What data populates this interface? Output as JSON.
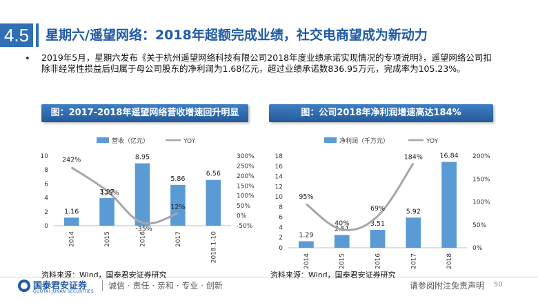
{
  "header": {
    "section_number": "4.5",
    "title": "星期六/遥望网络：2018年超额完成业绩，社交电商望成为新动力"
  },
  "bullet": {
    "symbol": "•",
    "text": "2019年5月，星期六发布《关于杭州遥望网络科技有限公司2018年度业绩承诺实现情况的专项说明》，遥望网络公司扣除非经常性损益后归属于母公司股东的净利润为1.68亿元，超过业绩承诺数836.95万元，完成率为105.23%。"
  },
  "charts": [
    {
      "heading": "图：2017-2018年遥望网络营收增速回升明显",
      "source": "资料来源：Wind，国泰君安证券研究"
    },
    {
      "heading": "图：公司2018年净利润增速高达184%",
      "source": "资料来源：Wind，国泰君安证券研究"
    }
  ],
  "chart_data": [
    {
      "type": "bar",
      "categories": [
        "2014",
        "2015",
        "2016",
        "2017",
        "2018.1-10"
      ],
      "series": [
        {
          "name": "营收（亿元）",
          "type": "bar",
          "axis": "left",
          "values": [
            1.16,
            3.97,
            8.95,
            5.86,
            6.56
          ],
          "labels": [
            "1.16",
            "3.97",
            "8.95",
            "5.86",
            "6.56"
          ]
        },
        {
          "name": "YOY",
          "type": "line",
          "axis": "right",
          "values": [
            242,
            125,
            -35,
            12,
            null
          ],
          "labels": [
            "242%",
            "125%",
            "-35%",
            "12%",
            ""
          ]
        }
      ],
      "ylim_left": [
        0,
        10
      ],
      "yticks_left": [
        "0",
        "2",
        "4",
        "6",
        "8",
        "10"
      ],
      "ylim_right": [
        -50,
        300
      ],
      "yticks_right": [
        "-50%",
        "0%",
        "50%",
        "100%",
        "150%",
        "200%",
        "250%",
        "300%"
      ],
      "legend": "top",
      "grid": false,
      "colors": {
        "bar": "#5b9bd5",
        "line": "#a6a6a6"
      }
    },
    {
      "type": "bar",
      "categories": [
        "2014",
        "2015",
        "2016",
        "2017",
        "2018"
      ],
      "series": [
        {
          "name": "净利润（千万元）",
          "type": "bar",
          "axis": "left",
          "values": [
            1.29,
            2.51,
            3.51,
            5.92,
            16.84
          ],
          "labels": [
            "1.29",
            "2.51",
            "3.51",
            "5.92",
            "16.84"
          ]
        },
        {
          "name": "YOY",
          "type": "line",
          "axis": "right",
          "values": [
            95,
            40,
            69,
            184,
            null
          ],
          "labels": [
            "95%",
            "40%",
            "69%",
            "184%",
            ""
          ]
        }
      ],
      "ylim_left": [
        0,
        18
      ],
      "yticks_left": [
        "0",
        "2",
        "4",
        "6",
        "8",
        "10",
        "12",
        "14",
        "16",
        "18"
      ],
      "ylim_right": [
        0,
        200
      ],
      "yticks_right": [
        "0%",
        "50%",
        "100%",
        "150%",
        "200%"
      ],
      "legend": "top",
      "grid": false,
      "colors": {
        "bar": "#5b9bd5",
        "line": "#a6a6a6"
      }
    }
  ],
  "footer": {
    "logo_text": "国泰君安证券",
    "logo_sub": "GUOTAI JUNAN SECURITIES",
    "motto": "诚信 · 责任 · 亲和 · 专业 · 创新",
    "disclaimer": "请参阅附注免责声明",
    "page_number": "50"
  }
}
